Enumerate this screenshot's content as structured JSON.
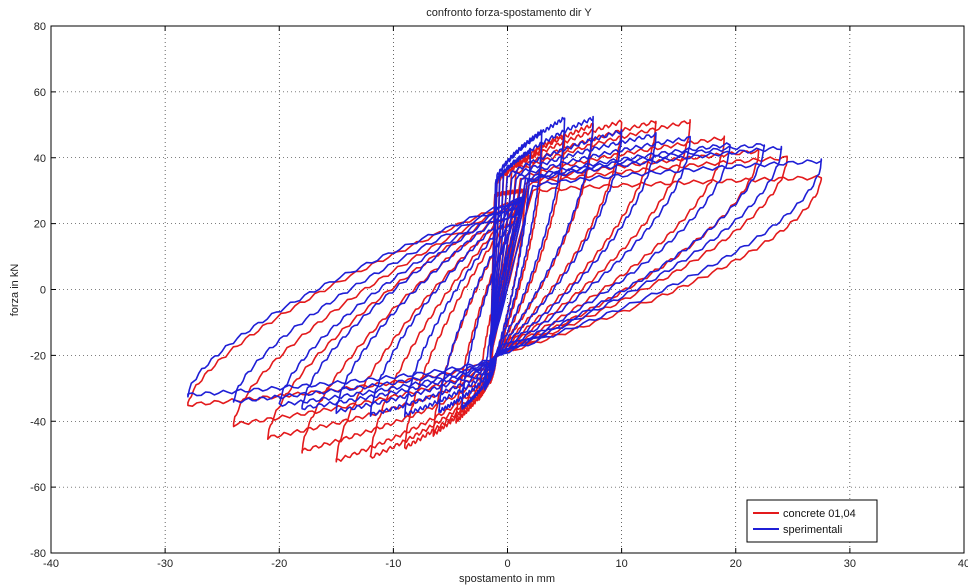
{
  "chart_data": {
    "type": "line",
    "title": "confronto forza-spostamento dir Y",
    "xlabel": "spostamento in mm",
    "ylabel": "forza in kN",
    "xlim": [
      -40,
      40
    ],
    "ylim": [
      -80,
      80
    ],
    "xticks": [
      -40,
      -30,
      -20,
      -10,
      0,
      10,
      20,
      30,
      40
    ],
    "yticks": [
      -80,
      -60,
      -40,
      -20,
      0,
      20,
      40,
      60,
      80
    ],
    "grid": true,
    "legend_position": "bottom-right",
    "series": [
      {
        "name": "concrete 01,04",
        "color": "#e31a1c",
        "cycles": [
          {
            "xmin": -1.5,
            "xmax": 1.5,
            "fmin": -28,
            "fmax": 30
          },
          {
            "xmin": -2.5,
            "xmax": 3.0,
            "fmin": -33,
            "fmax": 42
          },
          {
            "xmin": -4.5,
            "xmax": 5.0,
            "fmin": -40,
            "fmax": 47
          },
          {
            "xmin": -6.5,
            "xmax": 7.5,
            "fmin": -44,
            "fmax": 50
          },
          {
            "xmin": -9.0,
            "xmax": 10.0,
            "fmin": -48,
            "fmax": 51
          },
          {
            "xmin": -12.0,
            "xmax": 13.0,
            "fmin": -51,
            "fmax": 51
          },
          {
            "xmin": -15.0,
            "xmax": 16.0,
            "fmin": -52,
            "fmax": 51
          },
          {
            "xmin": -18.0,
            "xmax": 19.0,
            "fmin": -49,
            "fmax": 46
          },
          {
            "xmin": -21.0,
            "xmax": 22.0,
            "fmin": -45,
            "fmax": 42
          },
          {
            "xmin": -24.0,
            "xmax": 24.5,
            "fmin": -41,
            "fmax": 40
          },
          {
            "xmin": -28.0,
            "xmax": 27.5,
            "fmin": -35,
            "fmax": 34
          }
        ]
      },
      {
        "name": "sperimentali",
        "color": "#1f1fd6",
        "cycles": [
          {
            "xmin": -1.5,
            "xmax": 2.0,
            "fmin": -22,
            "fmax": 42
          },
          {
            "xmin": -2.0,
            "xmax": 3.0,
            "fmin": -30,
            "fmax": 48
          },
          {
            "xmin": -4.0,
            "xmax": 5.0,
            "fmin": -36,
            "fmax": 52
          },
          {
            "xmin": -6.0,
            "xmax": 7.5,
            "fmin": -37,
            "fmax": 52
          },
          {
            "xmin": -9.0,
            "xmax": 10.0,
            "fmin": -38,
            "fmax": 48
          },
          {
            "xmin": -12.0,
            "xmax": 13.0,
            "fmin": -38,
            "fmax": 47
          },
          {
            "xmin": -15.0,
            "xmax": 16.0,
            "fmin": -37,
            "fmax": 46
          },
          {
            "xmin": -18.0,
            "xmax": 19.5,
            "fmin": -36,
            "fmax": 44
          },
          {
            "xmin": -20.0,
            "xmax": 22.5,
            "fmin": -35,
            "fmax": 44
          },
          {
            "xmin": -24.0,
            "xmax": 24.0,
            "fmin": -34,
            "fmax": 43
          },
          {
            "xmin": -28.0,
            "xmax": 27.5,
            "fmin": -32,
            "fmax": 39
          }
        ]
      }
    ]
  }
}
